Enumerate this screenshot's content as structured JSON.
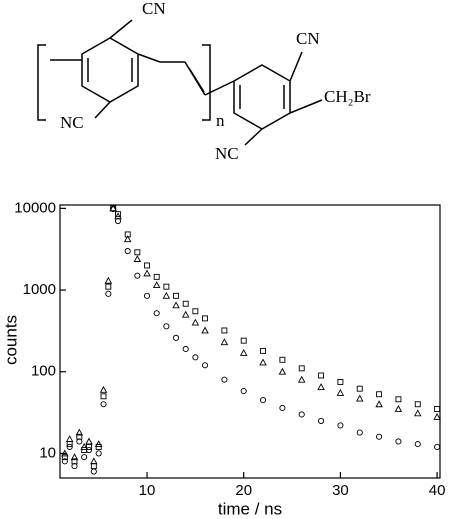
{
  "structure": {
    "labels": [
      "CN",
      "NC",
      "n",
      "CN",
      "CH₂Br",
      "NC"
    ]
  },
  "chart_data": {
    "type": "scatter",
    "log_y": true,
    "x_label": "time / ns",
    "y_label": "counts",
    "xlim": [
      1,
      40.3
    ],
    "ylim": [
      5,
      11000
    ],
    "xticks": [
      10,
      20,
      30,
      40
    ],
    "yticks": [
      10,
      100,
      1000,
      10000
    ],
    "x": [
      1.5,
      2,
      2.5,
      3,
      3.5,
      4,
      4.5,
      5,
      5.5,
      6,
      6.5,
      7,
      8,
      9,
      10,
      11,
      12,
      13,
      14,
      15,
      16,
      18,
      20,
      22,
      24,
      26,
      28,
      30,
      32,
      34,
      36,
      38,
      40
    ],
    "series": [
      {
        "marker": "square",
        "color": "#000000",
        "values": [
          9,
          13,
          8,
          16,
          11,
          12,
          7,
          12,
          50,
          1100,
          10000,
          8500,
          4800,
          2900,
          2000,
          1450,
          1100,
          850,
          680,
          550,
          450,
          320,
          240,
          180,
          140,
          110,
          90,
          75,
          62,
          53,
          46,
          40,
          35
        ]
      },
      {
        "marker": "triangle",
        "color": "#000000",
        "values": [
          10,
          15,
          9,
          18,
          12,
          14,
          8,
          13,
          60,
          1300,
          10000,
          8000,
          4200,
          2400,
          1600,
          1150,
          850,
          650,
          500,
          400,
          320,
          230,
          170,
          130,
          100,
          80,
          65,
          55,
          47,
          40,
          35,
          31,
          28
        ]
      },
      {
        "marker": "circle",
        "color": "#000000",
        "values": [
          8,
          12,
          7,
          14,
          9,
          11,
          6,
          10,
          40,
          900,
          9800,
          7000,
          3000,
          1500,
          850,
          520,
          360,
          260,
          190,
          150,
          120,
          80,
          58,
          45,
          36,
          30,
          25,
          22,
          18,
          16,
          14,
          13,
          12
        ]
      }
    ]
  }
}
